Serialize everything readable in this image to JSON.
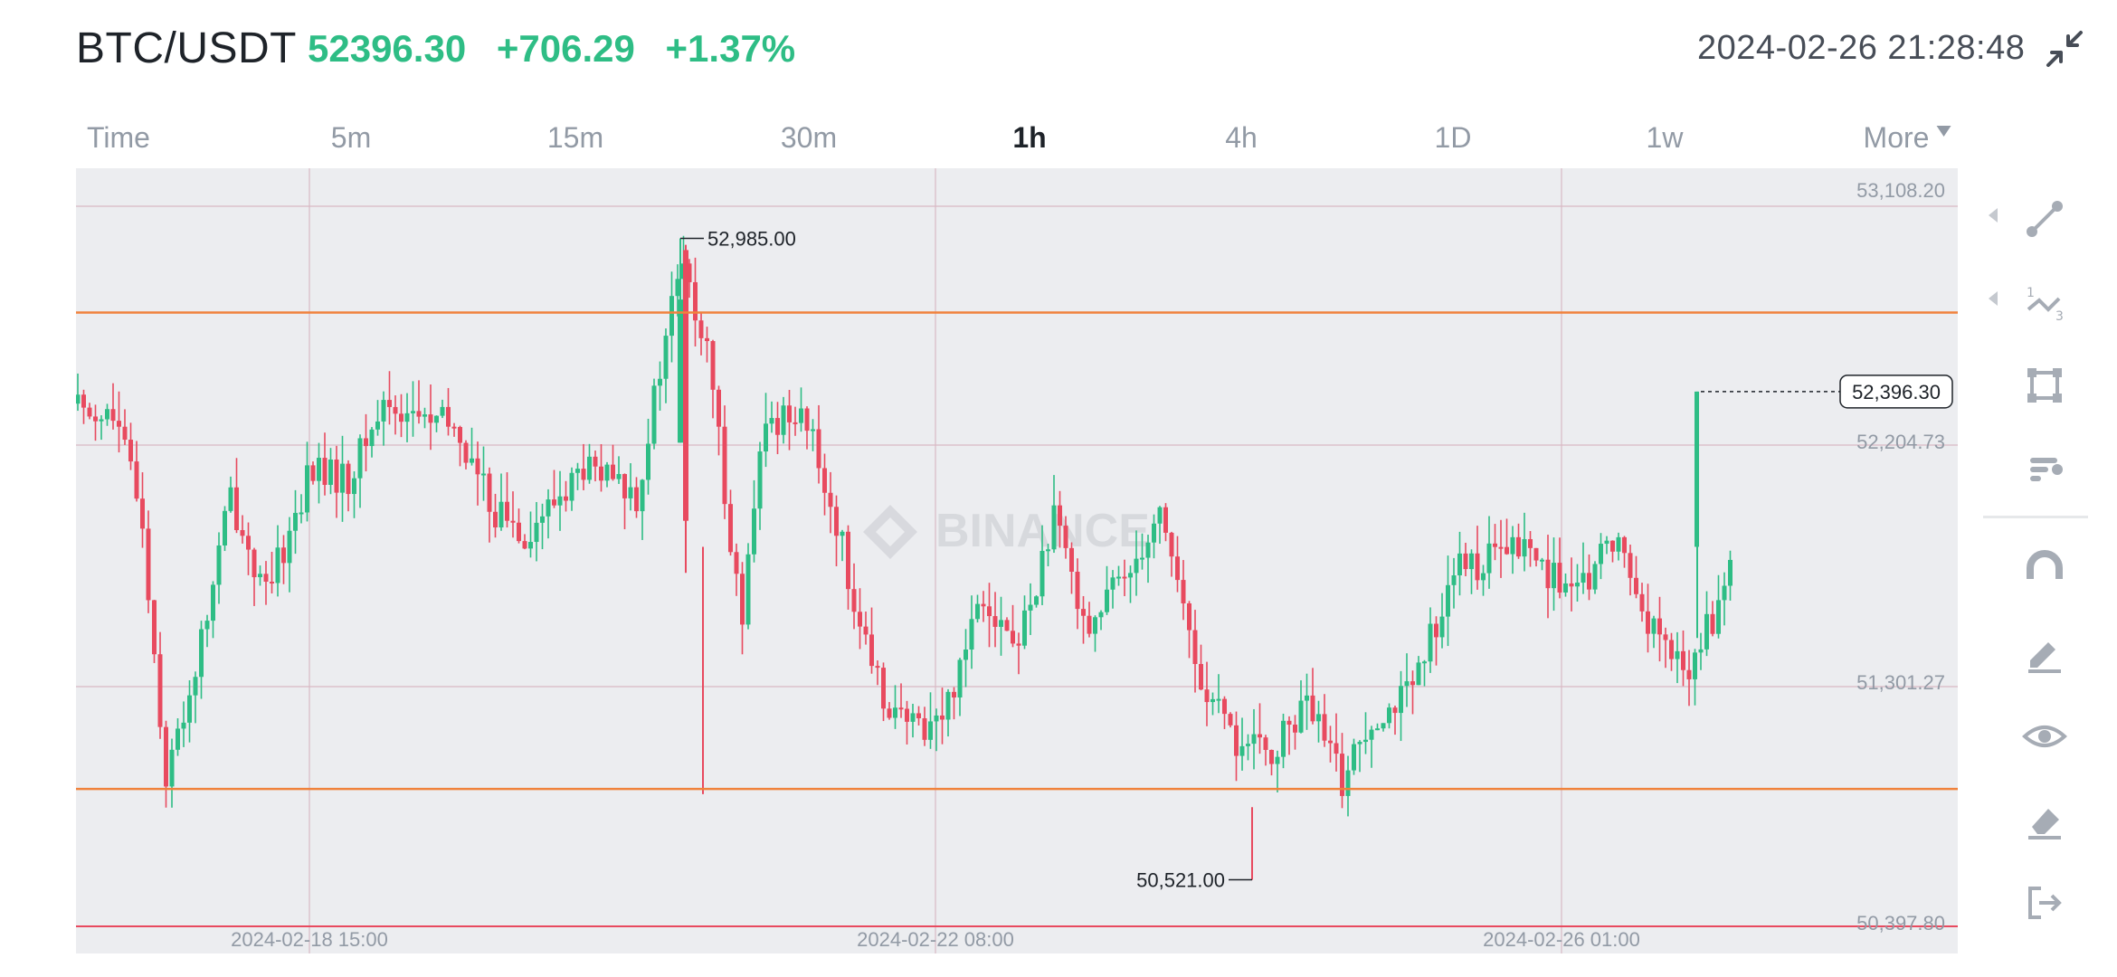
{
  "header": {
    "pair": "BTC/USDT",
    "last_price": "52396.30",
    "change": "+706.29",
    "change_pct": "+1.37%",
    "datetime": "2024-02-26 21:28:48",
    "collapse_icon": "collapse-arrows-icon"
  },
  "tabs": [
    {
      "label": "Time"
    },
    {
      "label": "5m"
    },
    {
      "label": "15m"
    },
    {
      "label": "30m"
    },
    {
      "label": "1h",
      "active": true
    },
    {
      "label": "4h"
    },
    {
      "label": "1D"
    },
    {
      "label": "1w"
    },
    {
      "label": "More"
    }
  ],
  "chart_data": {
    "type": "candlestick",
    "watermark": "BINANCE",
    "y_axis_labels": [
      "53,108.20",
      "52,204.73",
      "51,301.27",
      "50,397.80"
    ],
    "x_axis_labels": [
      "2024-02-18 15:00",
      "2024-02-22 08:00",
      "2024-02-26 01:00"
    ],
    "high_annotation": "52,985.00",
    "low_annotation": "50,521.00",
    "last_price_tag": "52,396.30",
    "horizontal_lines": [
      52700,
      50870
    ],
    "colors": {
      "up": "#2ebd85",
      "down": "#e84a5f",
      "hline": "#f0823c",
      "grid": "#d9b9c4"
    },
    "ylim": [
      50397.8,
      53108.2
    ]
  },
  "toolbar": {
    "items": [
      {
        "icon": "trend-line-icon"
      },
      {
        "icon": "fibonacci-icon"
      },
      {
        "icon": "rectangle-shape-icon"
      },
      {
        "icon": "indicator-bars-icon"
      },
      {
        "icon": "magnet-icon"
      },
      {
        "icon": "brush-icon"
      },
      {
        "icon": "visibility-eye-icon"
      },
      {
        "icon": "eraser-icon"
      },
      {
        "icon": "exit-icon"
      }
    ]
  }
}
